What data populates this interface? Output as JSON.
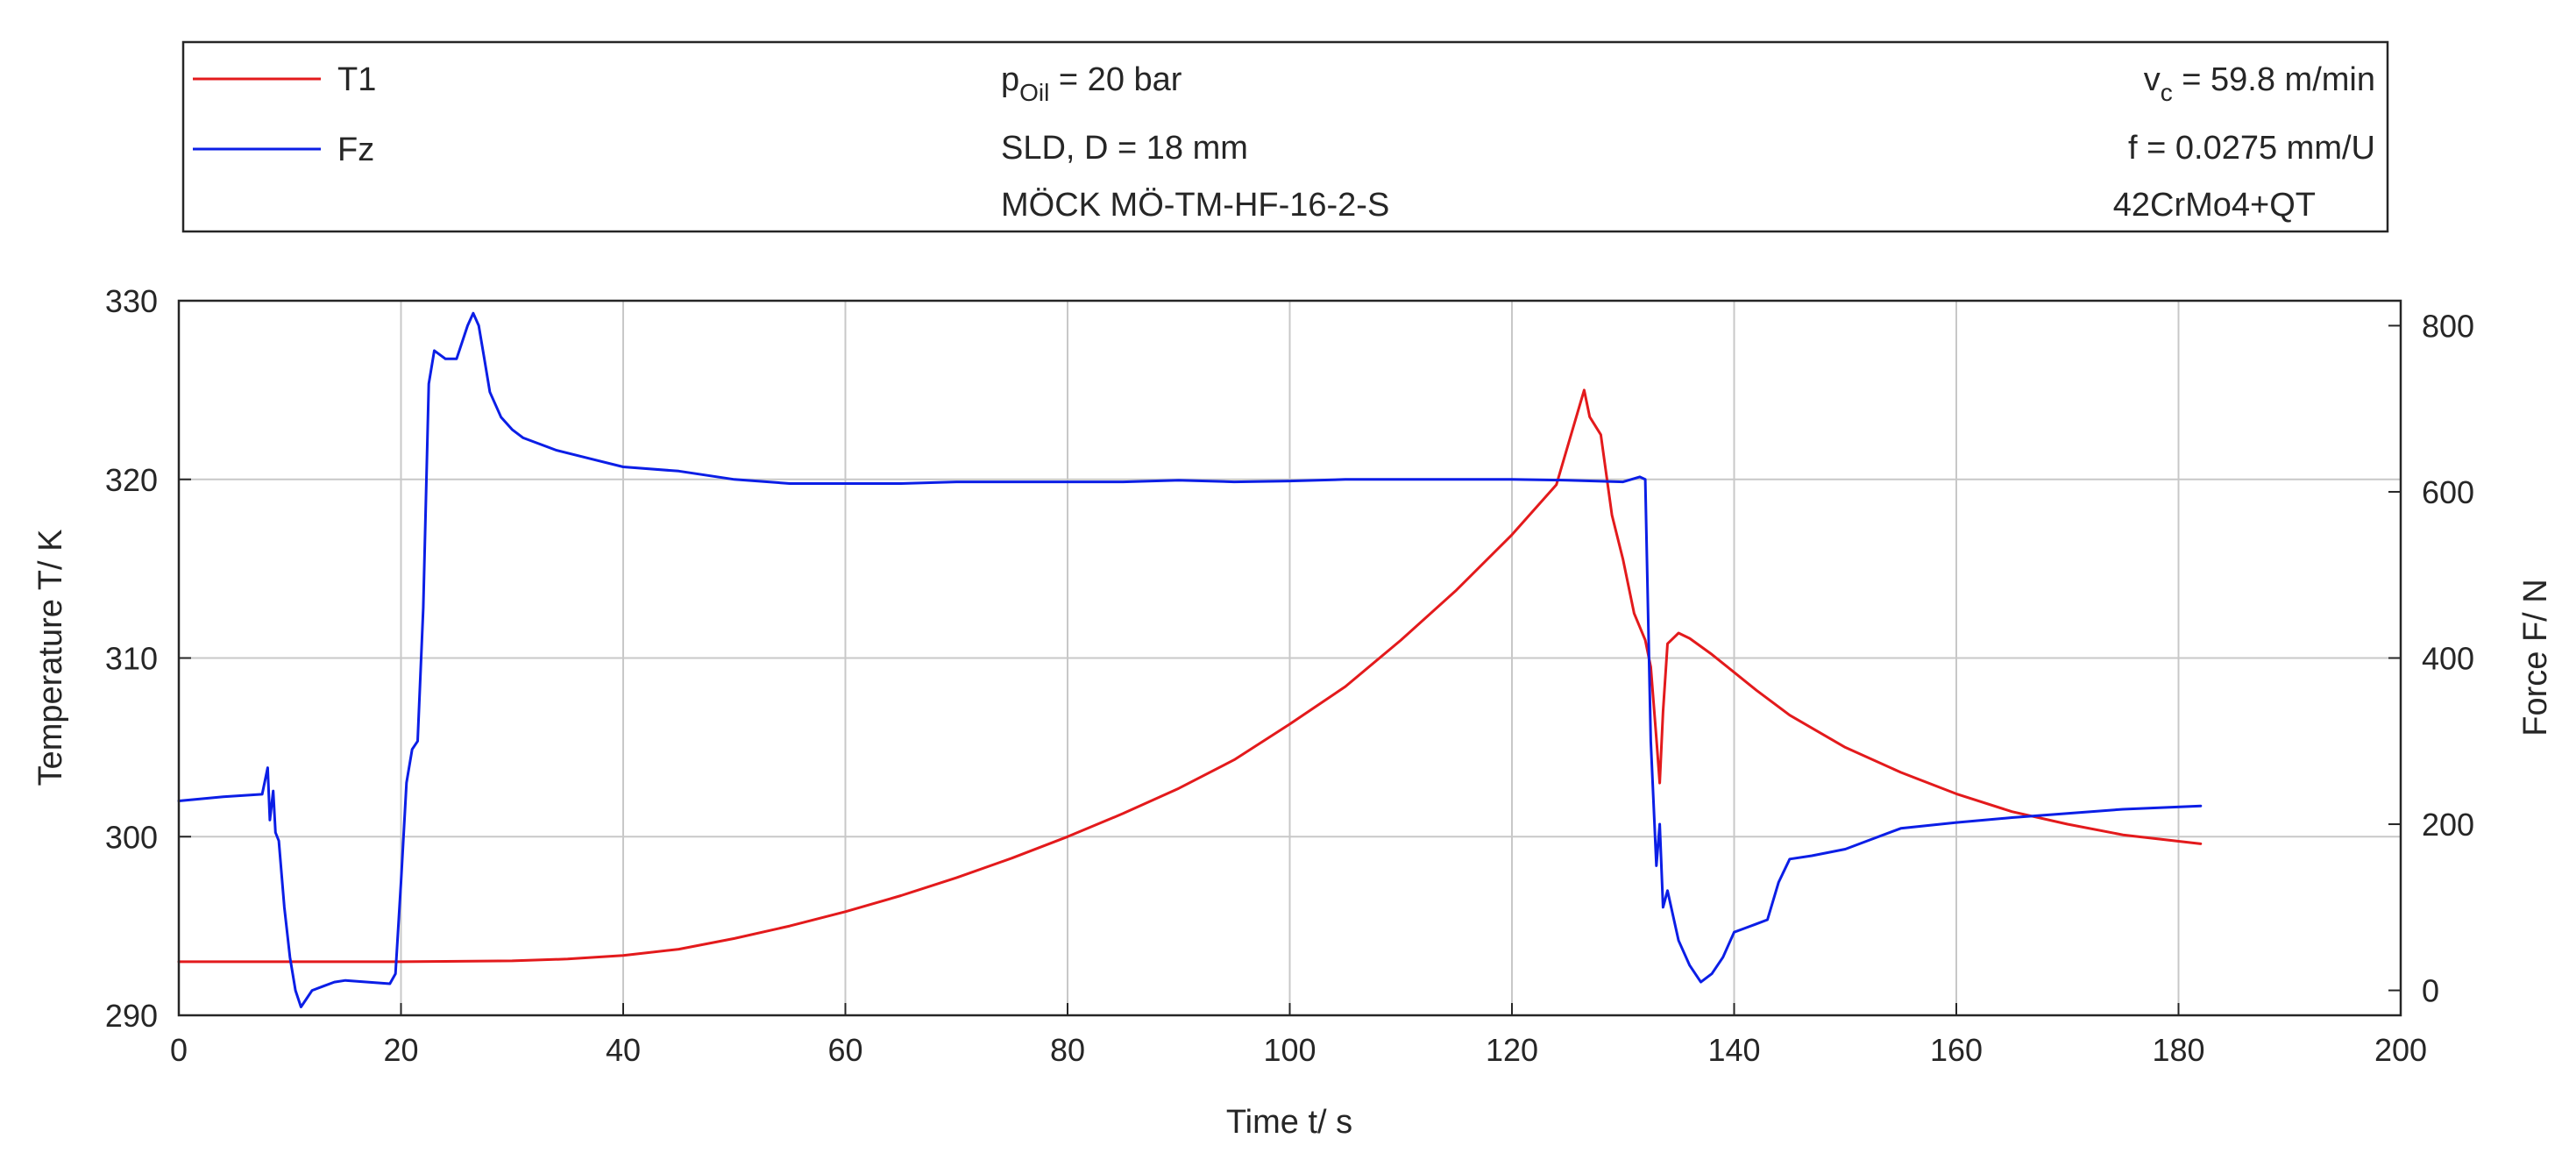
{
  "chart_data": {
    "type": "line",
    "xlabel": "Time t/ s",
    "ylabel_left": "Temperature T/ K",
    "ylabel_right": "Force F/ N",
    "xlim": [
      0,
      200
    ],
    "ylim_left": [
      290,
      330
    ],
    "ylim_right": [
      -30,
      830
    ],
    "x_ticks": [
      0,
      20,
      40,
      60,
      80,
      100,
      120,
      140,
      160,
      180,
      200
    ],
    "y_left_ticks": [
      290,
      300,
      310,
      320,
      330
    ],
    "y_right_ticks": [
      0,
      200,
      400,
      600,
      800
    ],
    "grid": true,
    "legend_position": "top",
    "series": [
      {
        "name": "T1",
        "axis": "left",
        "color": "#e31a1c",
        "x": [
          0,
          10,
          20,
          30,
          35,
          40,
          45,
          50,
          55,
          60,
          65,
          70,
          75,
          80,
          85,
          90,
          95,
          100,
          105,
          110,
          115,
          120,
          124,
          126.5,
          127,
          128,
          129,
          130,
          131,
          132,
          132.5,
          133,
          133.3,
          133.6,
          134,
          135,
          136,
          138,
          140,
          142,
          145,
          150,
          155,
          160,
          165,
          170,
          175,
          182
        ],
        "values": [
          293,
          293,
          293,
          293.05,
          293.15,
          293.35,
          293.7,
          294.3,
          295,
          295.8,
          296.7,
          297.7,
          298.8,
          300,
          301.3,
          302.7,
          304.3,
          306.3,
          308.4,
          311,
          313.8,
          316.9,
          319.7,
          325.0,
          323.5,
          322.5,
          318,
          315.5,
          312.5,
          311,
          309.5,
          305.5,
          303,
          307,
          310.8,
          311.4,
          311.1,
          310.2,
          309.2,
          308.2,
          306.8,
          305,
          303.6,
          302.4,
          301.4,
          300.7,
          300.1,
          299.6
        ]
      },
      {
        "name": "Fz",
        "axis": "right",
        "color": "#0b1ee6",
        "x": [
          0,
          4,
          7.5,
          8,
          8.2,
          8.5,
          8.7,
          9,
          9.5,
          10,
          10.5,
          11,
          11.5,
          12,
          13,
          14,
          15,
          17,
          19,
          19.5,
          20,
          20.5,
          21,
          21.5,
          22,
          22.5,
          23,
          24,
          25,
          26,
          26.5,
          27,
          27.5,
          28,
          29,
          30,
          31,
          32,
          34,
          37,
          40,
          45,
          50,
          55,
          60,
          65,
          70,
          75,
          80,
          85,
          90,
          95,
          100,
          105,
          110,
          115,
          120,
          125,
          130,
          131.5,
          132,
          132.5,
          133,
          133.3,
          133.6,
          134,
          134.5,
          135,
          136,
          137,
          138,
          139,
          140,
          141,
          142,
          143,
          144,
          145,
          147,
          150,
          152,
          155,
          160,
          165,
          170,
          175,
          182
        ],
        "values": [
          228,
          233,
          236,
          268,
          205,
          240,
          190,
          180,
          100,
          40,
          0,
          -20,
          -10,
          0,
          5,
          10,
          12,
          10,
          8,
          20,
          130,
          250,
          290,
          300,
          460,
          730,
          770,
          760,
          760,
          800,
          815,
          800,
          760,
          720,
          690,
          675,
          665,
          660,
          650,
          640,
          630,
          625,
          615,
          610,
          610,
          610,
          612,
          612,
          612,
          612,
          614,
          612,
          613,
          615,
          615,
          615,
          615,
          614,
          612,
          618,
          615,
          300,
          150,
          200,
          100,
          120,
          90,
          60,
          30,
          10,
          20,
          40,
          70,
          75,
          80,
          85,
          130,
          158,
          162,
          170,
          180,
          195,
          202,
          208,
          213,
          218,
          222
        ]
      }
    ]
  },
  "legend": {
    "entries": [
      {
        "label": "T1",
        "color": "#e31a1c"
      },
      {
        "label": "Fz",
        "color": "#0b1ee6"
      }
    ],
    "oil_label_base": "p",
    "oil_label_sub": "Oil",
    "oil_label_value": " = 20 bar",
    "tool_line": "SLD, D = 18 mm",
    "tool_name": "MÖCK MÖ-TM-HF-16-2-S",
    "vc_label_base": "v",
    "vc_label_sub": "c",
    "vc_label_value": " = 59.8 m/min",
    "feed": "f = 0.0275 mm/U",
    "material": "42CrMo4+QT"
  }
}
